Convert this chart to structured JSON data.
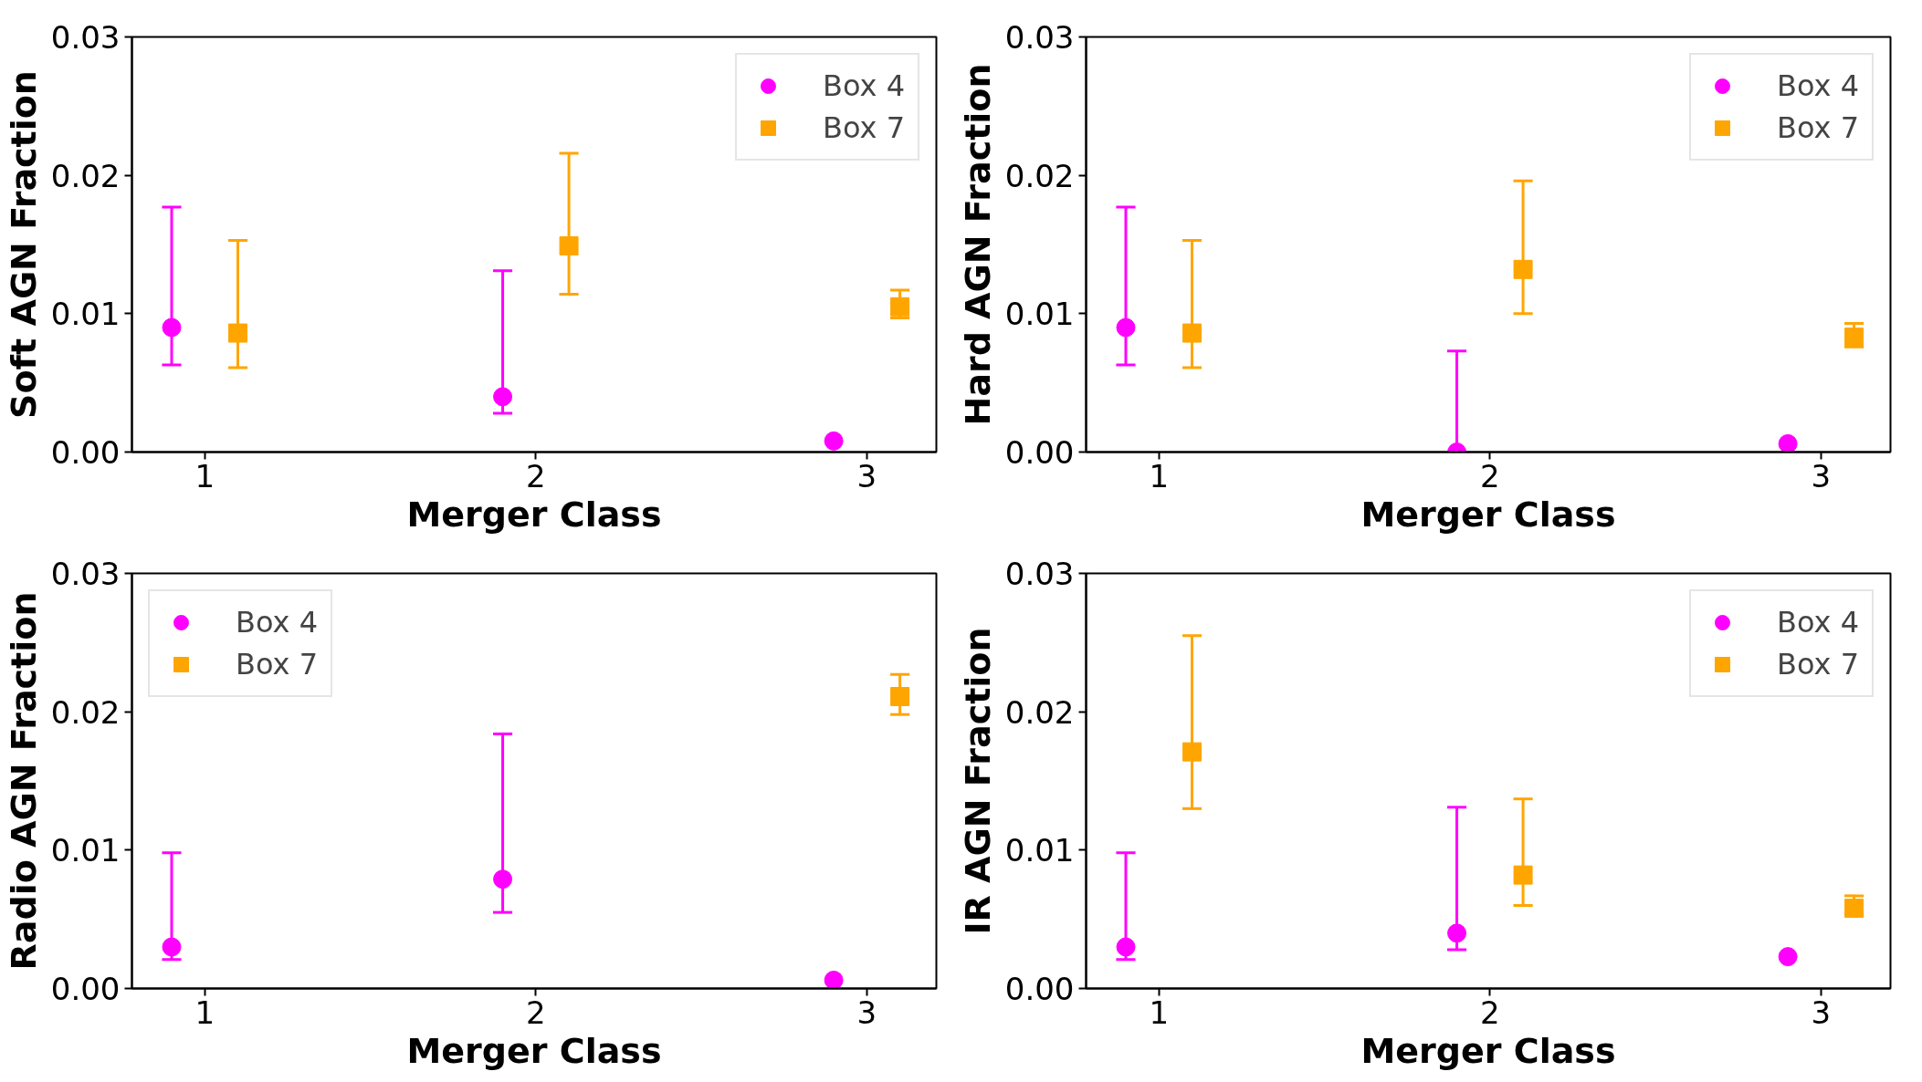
{
  "chart_data": [
    {
      "type": "scatter",
      "xlabel": "Merger Class",
      "ylabel": "Soft AGN Fraction",
      "xlim": [
        0.78,
        3.21
      ],
      "xticks": [
        1,
        2,
        3
      ],
      "ylim": [
        0,
        0.03
      ],
      "yticks": [
        {
          "value": 0,
          "label": "0.00"
        },
        {
          "value": 0.01,
          "label": "0.01"
        },
        {
          "value": 0.02,
          "label": "0.02"
        },
        {
          "value": 0.03,
          "label": "0.03"
        }
      ],
      "grid": false,
      "legend": "top right",
      "series": [
        {
          "name": "Box 4",
          "color": "#ff00ff",
          "marker": "circle",
          "x": [
            0.9,
            1.9,
            2.9
          ],
          "values": [
            0.009,
            0.004,
            0.0008
          ],
          "errors": [
            [
              0.0063,
              0.0177
            ],
            [
              0.0028,
              0.0131
            ],
            null
          ]
        },
        {
          "name": "Box 7",
          "color": "#ffa500",
          "marker": "square",
          "x": [
            1.1,
            2.1,
            3.1
          ],
          "values": [
            0.0086,
            0.0149,
            0.0105
          ],
          "errors": [
            [
              0.0061,
              0.0153
            ],
            [
              0.0114,
              0.0216
            ],
            [
              0.0097,
              0.0117
            ]
          ]
        }
      ]
    },
    {
      "type": "scatter",
      "xlabel": "Merger Class",
      "ylabel": "Hard AGN Fraction",
      "xlim": [
        0.78,
        3.21
      ],
      "xticks": [
        1,
        2,
        3
      ],
      "ylim": [
        0,
        0.03
      ],
      "yticks": [
        {
          "value": 0,
          "label": "0.00"
        },
        {
          "value": 0.01,
          "label": "0.01"
        },
        {
          "value": 0.02,
          "label": "0.02"
        },
        {
          "value": 0.03,
          "label": "0.03"
        }
      ],
      "grid": false,
      "legend": "top right",
      "series": [
        {
          "name": "Box 4",
          "color": "#ff00ff",
          "marker": "circle",
          "x": [
            0.9,
            1.9,
            2.9
          ],
          "values": [
            0.009,
            0.0,
            0.0006
          ],
          "errors": [
            [
              0.0063,
              0.0177
            ],
            [
              0.0,
              0.0073
            ],
            null
          ]
        },
        {
          "name": "Box 7",
          "color": "#ffa500",
          "marker": "square",
          "x": [
            1.1,
            2.1,
            3.1
          ],
          "values": [
            0.0086,
            0.0132,
            0.0083
          ],
          "errors": [
            [
              0.0061,
              0.0153
            ],
            [
              0.01,
              0.0196
            ],
            [
              0.0076,
              0.0093
            ]
          ]
        }
      ]
    },
    {
      "type": "scatter",
      "xlabel": "Merger Class",
      "ylabel": "Radio AGN Fraction",
      "xlim": [
        0.78,
        3.21
      ],
      "xticks": [
        1,
        2,
        3
      ],
      "ylim": [
        0,
        0.03
      ],
      "yticks": [
        {
          "value": 0,
          "label": "0.00"
        },
        {
          "value": 0.01,
          "label": "0.01"
        },
        {
          "value": 0.02,
          "label": "0.02"
        },
        {
          "value": 0.03,
          "label": "0.03"
        }
      ],
      "grid": false,
      "legend": "top left",
      "series": [
        {
          "name": "Box 4",
          "color": "#ff00ff",
          "marker": "circle",
          "x": [
            0.9,
            1.9,
            2.9
          ],
          "values": [
            0.003,
            0.0079,
            0.0006
          ],
          "errors": [
            [
              0.0021,
              0.0098
            ],
            [
              0.0055,
              0.0184
            ],
            null
          ]
        },
        {
          "name": "Box 7",
          "color": "#ffa500",
          "marker": "square",
          "x": [
            3.1
          ],
          "values": [
            0.0211
          ],
          "errors": [
            [
              0.0198,
              0.0227
            ]
          ]
        }
      ]
    },
    {
      "type": "scatter",
      "xlabel": "Merger Class",
      "ylabel": "IR AGN Fraction",
      "xlim": [
        0.78,
        3.21
      ],
      "xticks": [
        1,
        2,
        3
      ],
      "ylim": [
        0,
        0.03
      ],
      "yticks": [
        {
          "value": 0,
          "label": "0.00"
        },
        {
          "value": 0.01,
          "label": "0.01"
        },
        {
          "value": 0.02,
          "label": "0.02"
        },
        {
          "value": 0.03,
          "label": "0.03"
        }
      ],
      "grid": false,
      "legend": "top right",
      "series": [
        {
          "name": "Box 4",
          "color": "#ff00ff",
          "marker": "circle",
          "x": [
            0.9,
            1.9,
            2.9
          ],
          "values": [
            0.003,
            0.004,
            0.0023
          ],
          "errors": [
            [
              0.0021,
              0.0098
            ],
            [
              0.0028,
              0.0131
            ],
            null
          ]
        },
        {
          "name": "Box 7",
          "color": "#ffa500",
          "marker": "square",
          "x": [
            1.1,
            2.1,
            3.1
          ],
          "values": [
            0.0171,
            0.0082,
            0.0058
          ],
          "errors": [
            [
              0.013,
              0.0255
            ],
            [
              0.006,
              0.0137
            ],
            [
              0.0053,
              0.0067
            ]
          ]
        }
      ]
    }
  ]
}
